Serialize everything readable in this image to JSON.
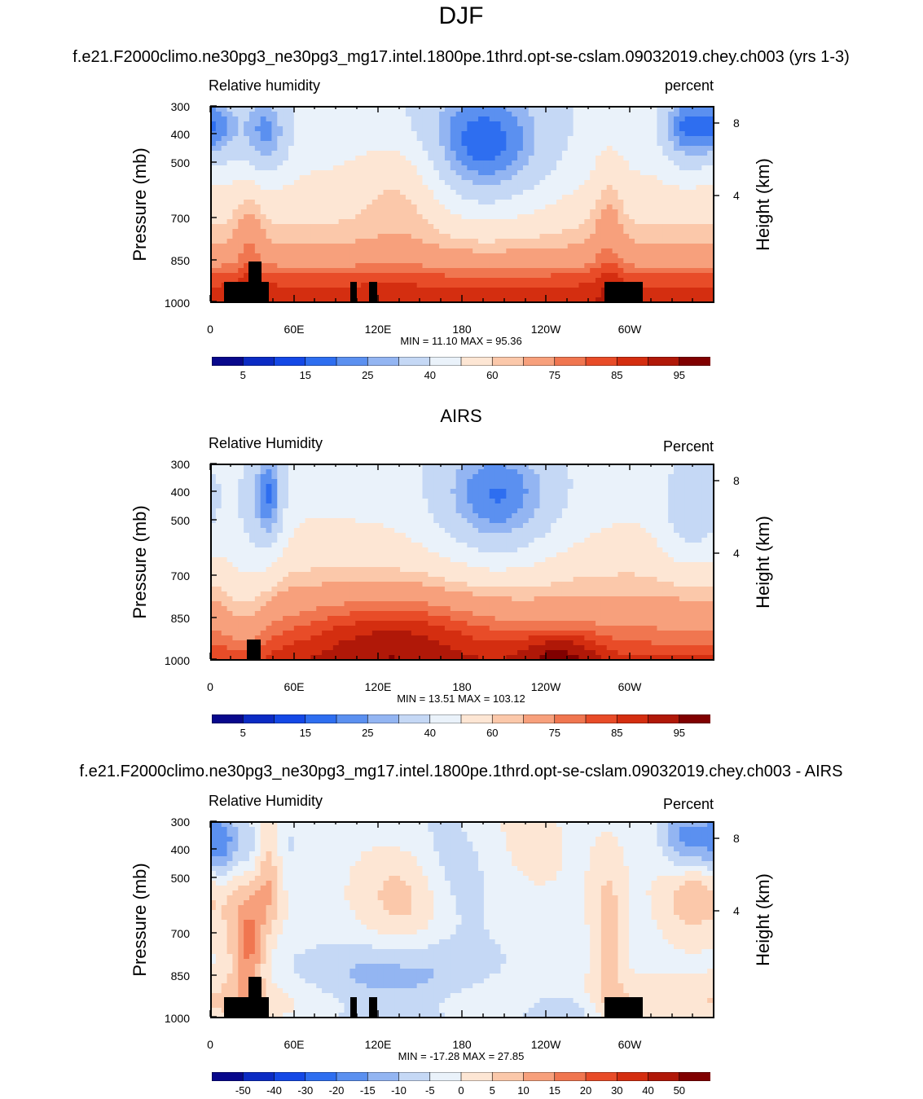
{
  "title": "DJF",
  "case_title_1": "f.e21.F2000climo.ne30pg3_ne30pg3_mg17.intel.1800pe.1thrd.opt-se-cslam.09032019.chey.ch003 (yrs 1-3)",
  "case_title_2": "AIRS",
  "case_title_3": "f.e21.F2000climo.ne30pg3_ne30pg3_mg17.intel.1800pe.1thrd.opt-se-cslam.09032019.chey.ch003 - AIRS",
  "colors": {
    "abs_scale": [
      "#08088c",
      "#0b2bc4",
      "#1448e6",
      "#2e6ef0",
      "#5b90f0",
      "#93b5f2",
      "#c5d8f5",
      "#eaf2fa",
      "#fde6d4",
      "#fbc8aa",
      "#f7a07c",
      "#f07650",
      "#e84c28",
      "#d42e10",
      "#b01808",
      "#800000"
    ],
    "diff_scale": [
      "#08088c",
      "#0b2bc4",
      "#1448e6",
      "#2e6ef0",
      "#5b90f0",
      "#93b5f2",
      "#c5d8f5",
      "#eaf2fa",
      "#fde6d4",
      "#fbc8aa",
      "#f7a07c",
      "#f07650",
      "#e84c28",
      "#d42e10",
      "#b01808",
      "#800000"
    ]
  },
  "chart_data": [
    {
      "type": "heatmap",
      "title": "",
      "left_string": "Relative humidity",
      "right_string": "percent",
      "ylabel": "Pressure (mb)",
      "ylabel_right": "Height (km)",
      "x_ticks": [
        "0",
        "60E",
        "120E",
        "180",
        "120W",
        "60W"
      ],
      "y_ticks": [
        "300",
        "400",
        "500",
        "700",
        "850",
        "1000"
      ],
      "y_right_ticks": [
        "8",
        "4"
      ],
      "min_max": "MIN =  11.10  MAX =  95.36",
      "colorbar_levels": [
        "5",
        "15",
        "25",
        "40",
        "60",
        "75",
        "85",
        "95"
      ],
      "x_range": [
        0,
        360
      ],
      "y_range": [
        1000,
        300
      ],
      "field": "model",
      "scale": "abs"
    },
    {
      "type": "heatmap",
      "title": "AIRS",
      "left_string": "Relative Humidity",
      "right_string": "Percent",
      "ylabel": "Pressure (mb)",
      "ylabel_right": "Height (km)",
      "x_ticks": [
        "0",
        "60E",
        "120E",
        "180",
        "120W",
        "60W"
      ],
      "y_ticks": [
        "300",
        "400",
        "500",
        "700",
        "850",
        "1000"
      ],
      "y_right_ticks": [
        "8",
        "4"
      ],
      "min_max": "MIN =  13.51  MAX = 103.12",
      "colorbar_levels": [
        "5",
        "15",
        "25",
        "40",
        "60",
        "75",
        "85",
        "95"
      ],
      "x_range": [
        0,
        360
      ],
      "y_range": [
        1000,
        300
      ],
      "field": "obs",
      "scale": "abs"
    },
    {
      "type": "heatmap",
      "title": "",
      "left_string": "Relative Humidity",
      "right_string": "Percent",
      "ylabel": "Pressure (mb)",
      "ylabel_right": "Height (km)",
      "x_ticks": [
        "0",
        "60E",
        "120E",
        "180",
        "120W",
        "60W"
      ],
      "y_ticks": [
        "300",
        "400",
        "500",
        "700",
        "850",
        "1000"
      ],
      "y_right_ticks": [
        "8",
        "4"
      ],
      "min_max": "MIN = -17.28  MAX =  27.85",
      "colorbar_levels": [
        "-50",
        "-40",
        "-30",
        "-20",
        "-15",
        "-10",
        "-5",
        "0",
        "5",
        "10",
        "15",
        "20",
        "30",
        "40",
        "50"
      ],
      "x_range": [
        0,
        360
      ],
      "y_range": [
        1000,
        300
      ],
      "field": "diff",
      "scale": "diff"
    }
  ]
}
